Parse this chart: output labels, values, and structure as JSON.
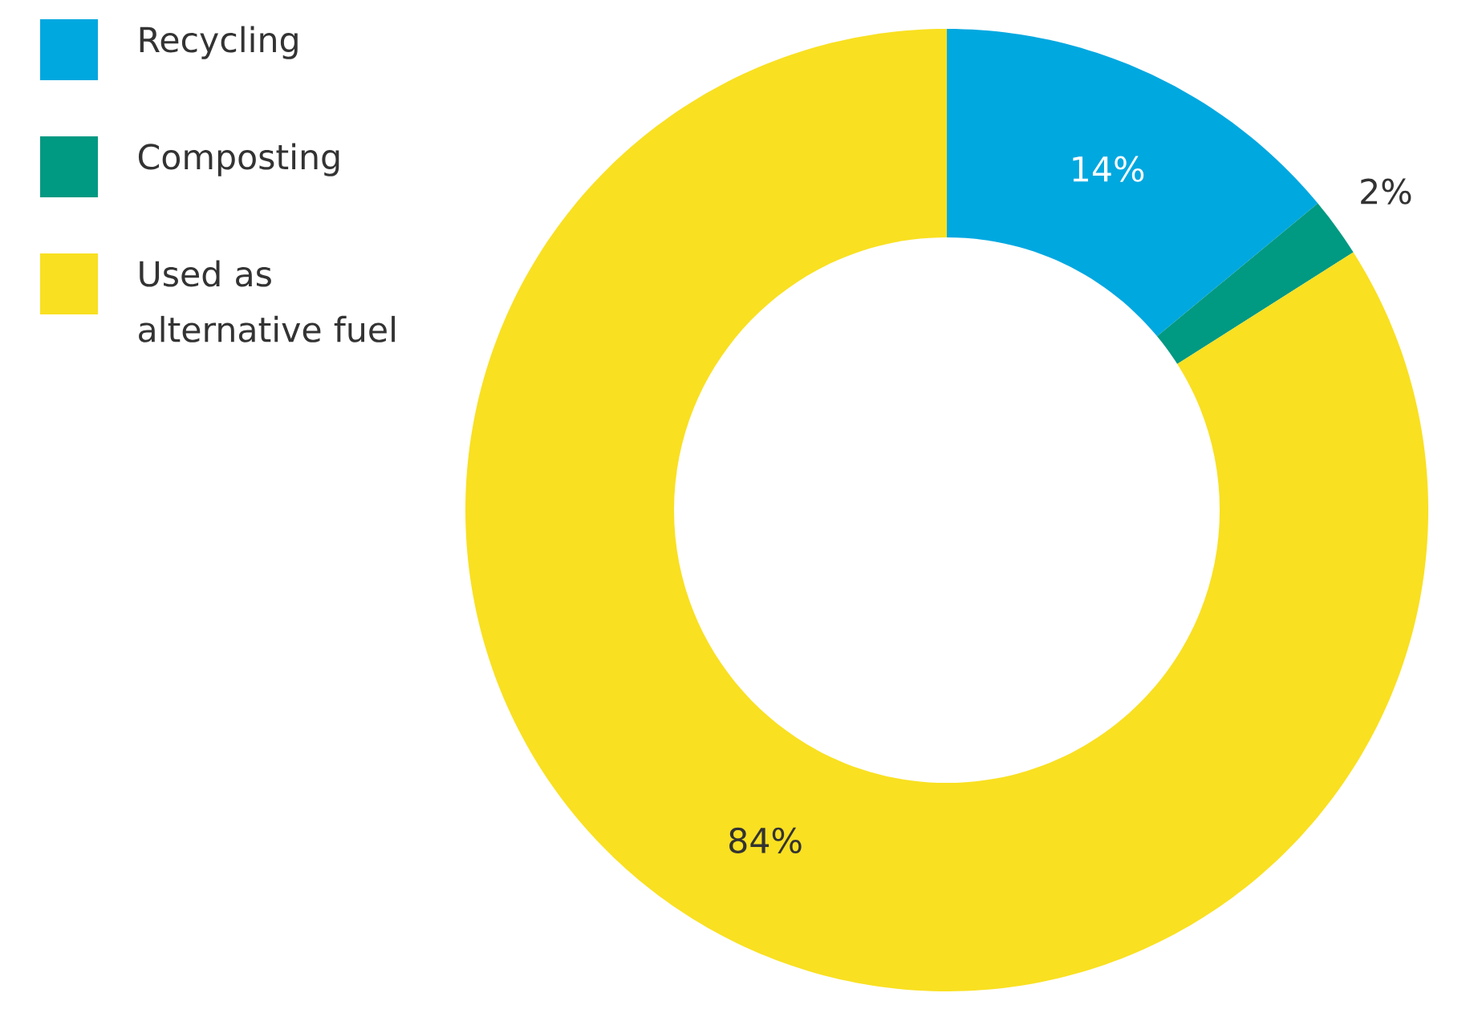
{
  "chart_data": {
    "type": "donut",
    "categories": [
      "Recycling",
      "Composting",
      "Used as alternative fuel"
    ],
    "values": [
      14,
      2,
      84
    ],
    "colors": [
      "#00a8e0",
      "#009982",
      "#f9e021"
    ],
    "value_labels": [
      "14%",
      "2%",
      "84%"
    ],
    "legend": "top left"
  }
}
